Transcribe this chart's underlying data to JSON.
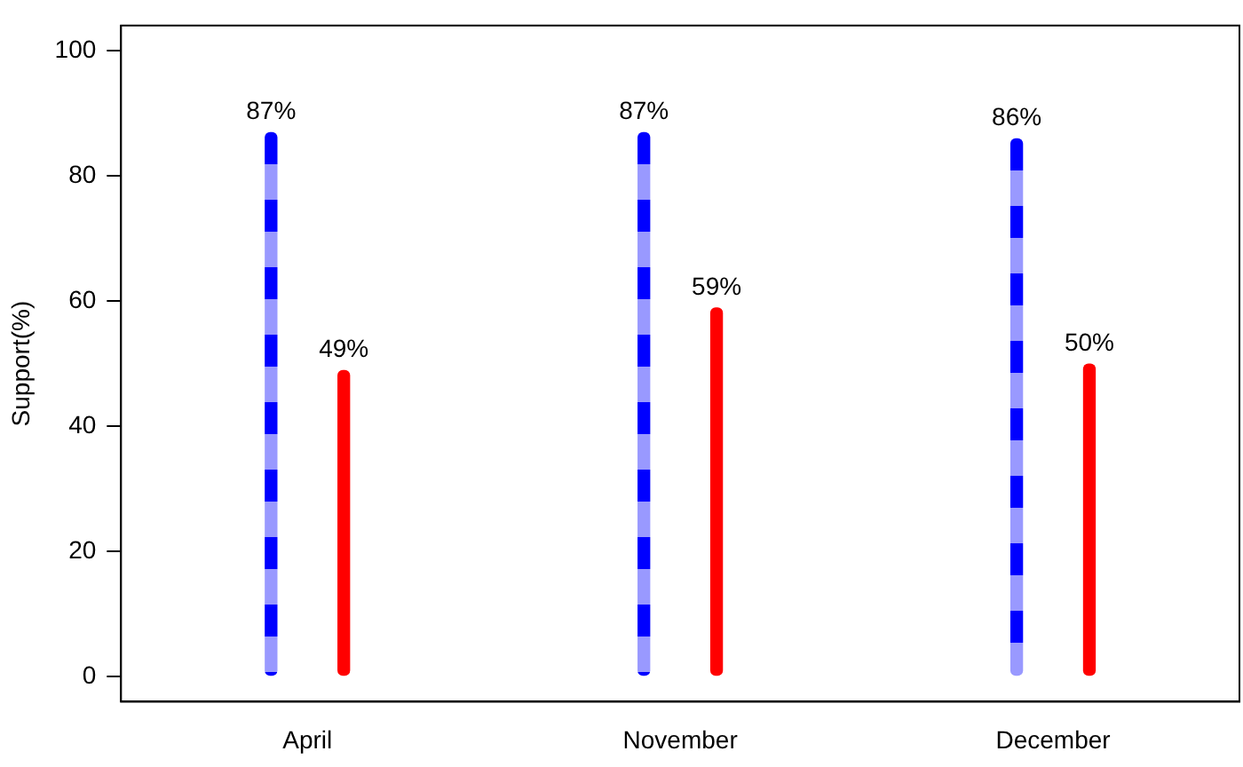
{
  "chart_data": {
    "type": "bar",
    "ylabel": "Support(%)",
    "categories": [
      "April",
      "November",
      "December"
    ],
    "series": [
      {
        "color": "#0000ff",
        "line_style": "dashed",
        "values": [
          87,
          87,
          86
        ],
        "value_labels": [
          "87%",
          "87%",
          "86%"
        ]
      },
      {
        "color": "#ff0000",
        "line_style": "solid",
        "values": [
          49,
          59,
          50
        ],
        "value_labels": [
          "49%",
          "59%",
          "50%"
        ]
      }
    ],
    "ylim": [
      -4,
      104
    ],
    "yticks": [
      0,
      20,
      40,
      60,
      80,
      100
    ],
    "grid": false,
    "legend": false
  }
}
